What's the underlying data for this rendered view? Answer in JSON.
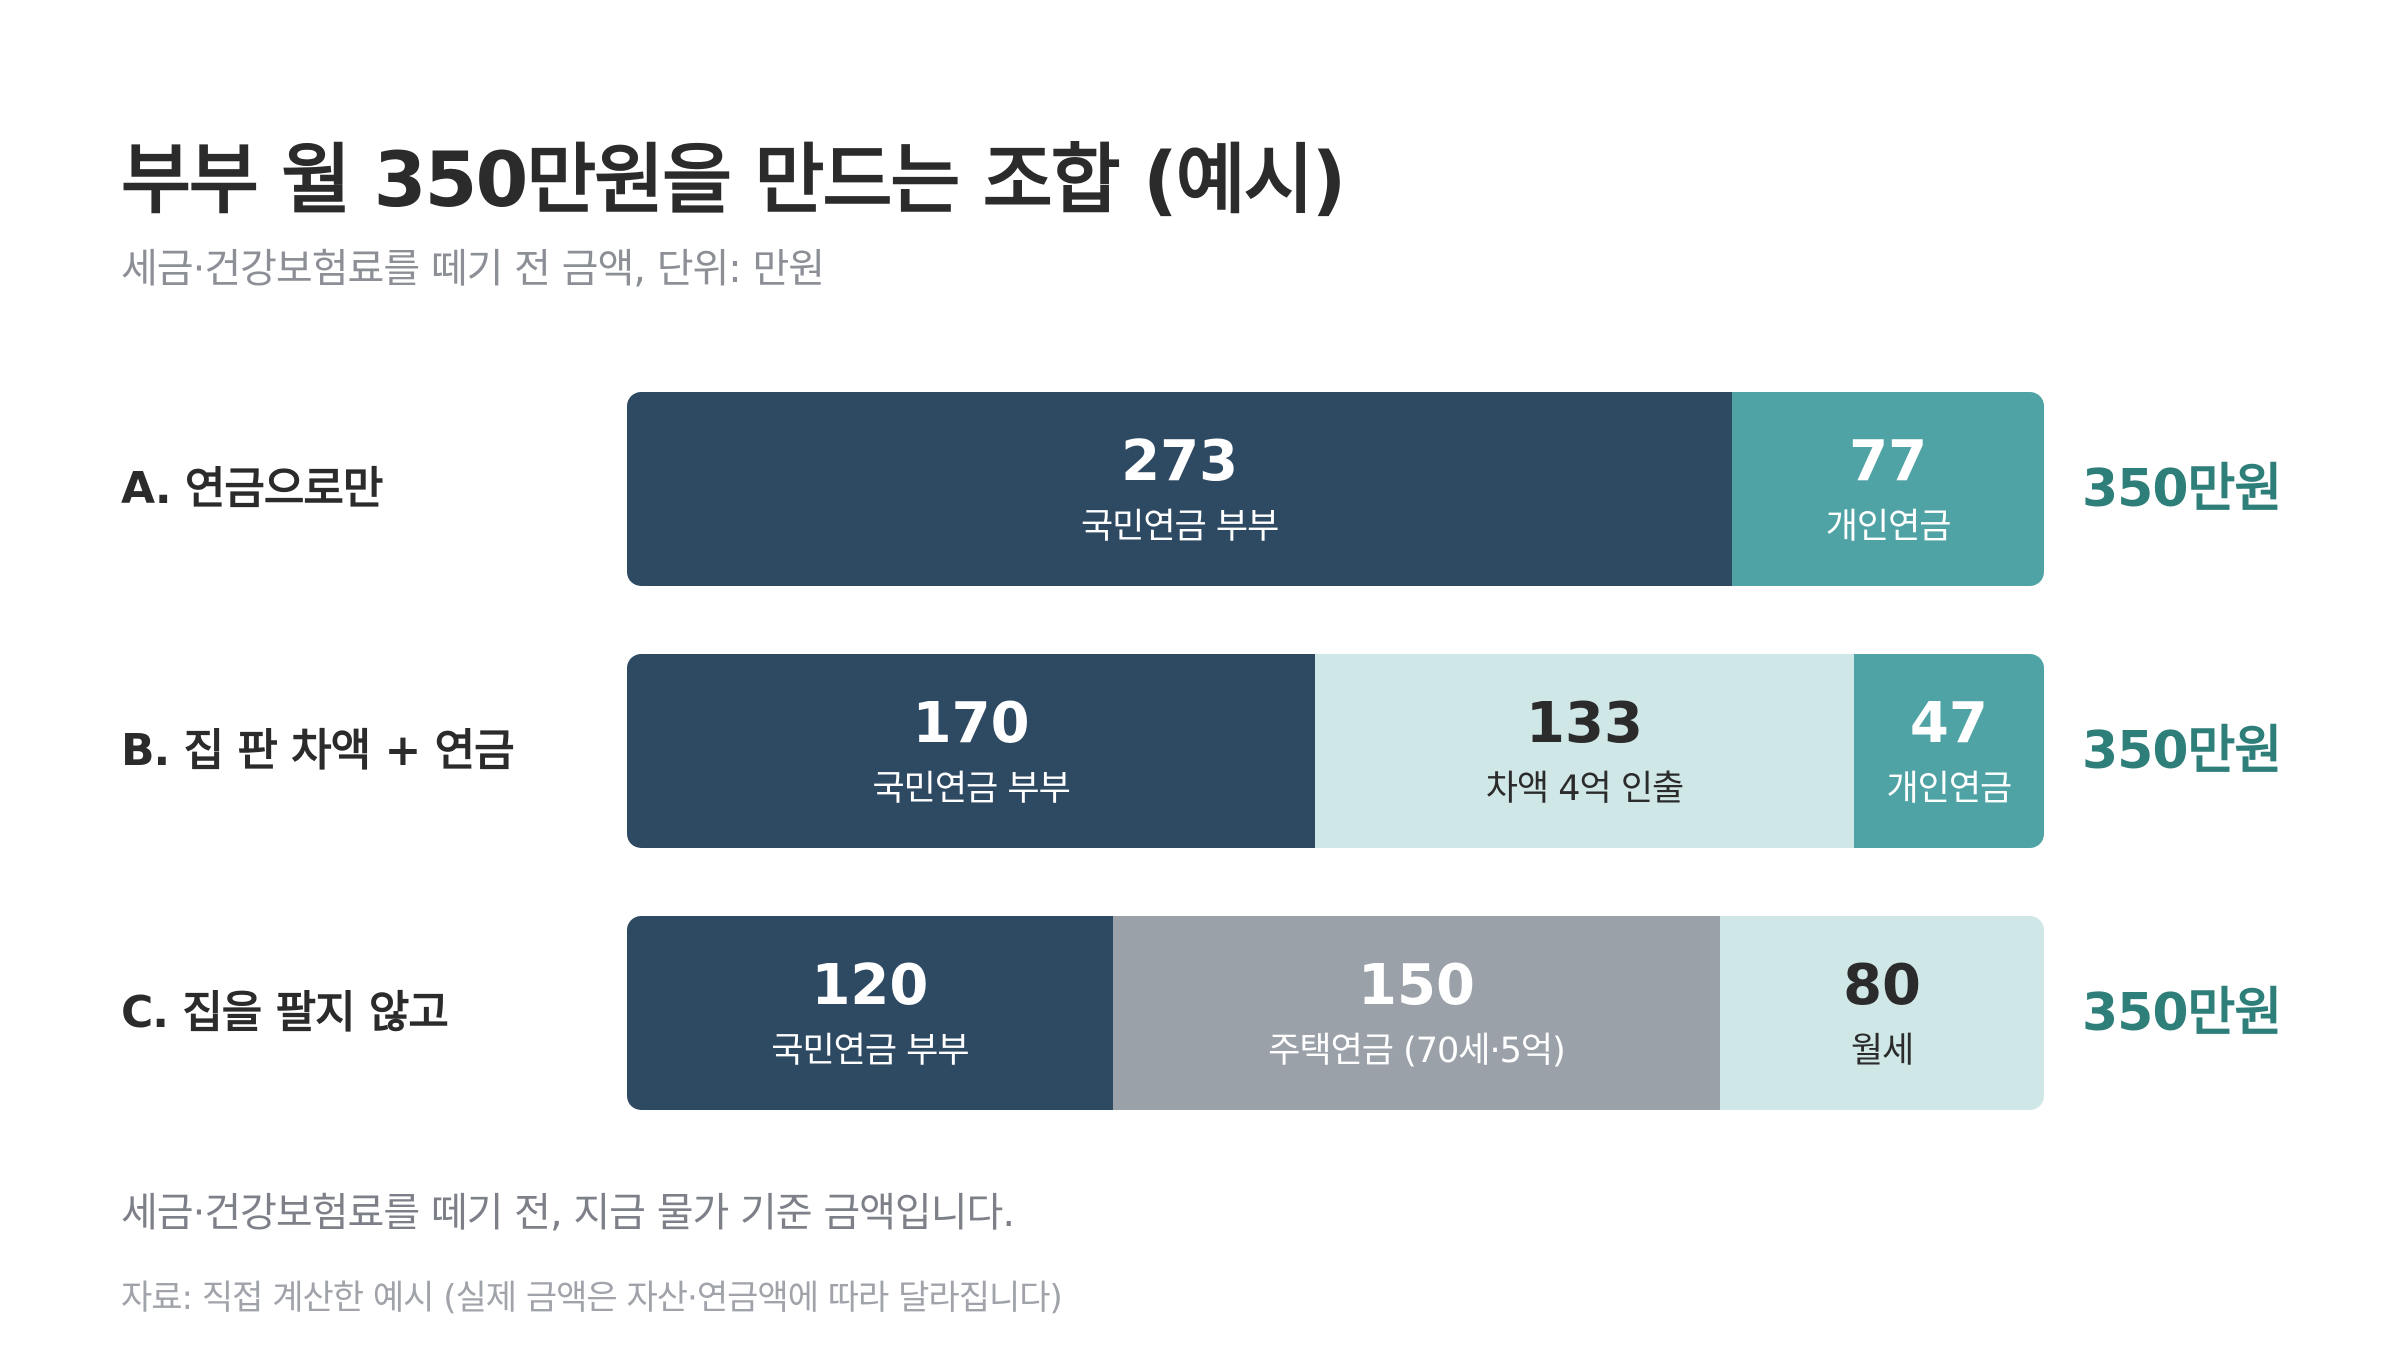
{
  "title": "부부 월 350만원을 만드는 조합 (예시)",
  "subtitle": "세금·건강보험료를 떼기 전 금액, 단위: 만원",
  "note": "세금·건강보험료를 떼기 전, 지금 물가 기준 금액입니다.",
  "source": "자료: 직접 계산한 예시 (실제 금액은 자산·연금액에 따라 달라집니다)",
  "colors": {
    "navy": "#2e4a63",
    "teal": "#4fa3a5",
    "light_teal": "#d0e7e7",
    "gray": "#9ba1a9",
    "total_text": "#2e7e7a"
  },
  "chart_data": {
    "type": "bar",
    "orientation": "horizontal",
    "stacked": true,
    "unit": "만원",
    "rows": [
      {
        "label": "A. 연금으로만",
        "total_label": "350만원",
        "segments": [
          {
            "value": 273,
            "value_label": "273",
            "label": "국민연금 부부",
            "color": "#2e4a63",
            "text_color": "#ffffff"
          },
          {
            "value": 77,
            "value_label": "77",
            "label": "개인연금",
            "color": "#4fa3a5",
            "text_color": "#ffffff"
          }
        ]
      },
      {
        "label": "B. 집 판 차액 + 연금",
        "total_label": "350만원",
        "segments": [
          {
            "value": 170,
            "value_label": "170",
            "label": "국민연금 부부",
            "color": "#2e4a63",
            "text_color": "#ffffff"
          },
          {
            "value": 133,
            "value_label": "133",
            "label": "차액 4억 인출",
            "color": "#d0e7e7",
            "text_color": "#2b2b2b"
          },
          {
            "value": 47,
            "value_label": "47",
            "label": "개인연금",
            "color": "#4fa3a5",
            "text_color": "#ffffff"
          }
        ]
      },
      {
        "label": "C. 집을 팔지 않고",
        "total_label": "350만원",
        "segments": [
          {
            "value": 120,
            "value_label": "120",
            "label": "국민연금 부부",
            "color": "#2e4a63",
            "text_color": "#ffffff"
          },
          {
            "value": 150,
            "value_label": "150",
            "label": "주택연금 (70세·5억)",
            "color": "#9ba1a9",
            "text_color": "#ffffff"
          },
          {
            "value": 80,
            "value_label": "80",
            "label": "월세",
            "color": "#d0e7e7",
            "text_color": "#2b2b2b"
          }
        ]
      }
    ]
  }
}
